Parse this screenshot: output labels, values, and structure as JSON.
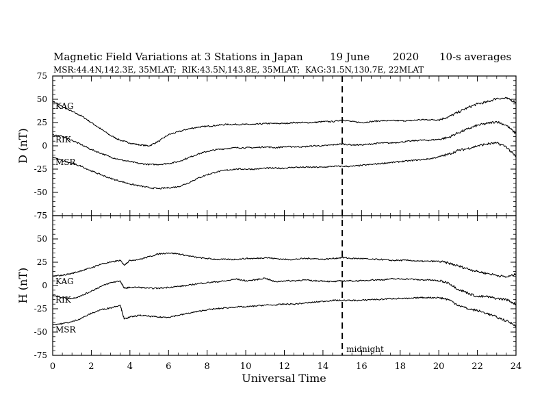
{
  "title": "Magnetic Field Variations at 3 Stations in Japan",
  "date": "19 June",
  "year": "2020",
  "averaging": "10-s averages",
  "subtitle": "MSR:44.4N,142.3E, 35MLAT;  RIK:43.5N,143.8E, 35MLAT;  KAG:31.5N,130.7E, 22MLAT",
  "chart_data": [
    {
      "type": "line",
      "ylabel": "D (nT)",
      "xlabel": "",
      "xlim": [
        0,
        24
      ],
      "ylim": [
        -75,
        75
      ],
      "yticks": [
        75,
        50,
        25,
        0,
        -25,
        -50,
        -75
      ],
      "grid": false,
      "series": [
        {
          "name": "KAG",
          "x": [
            0,
            0.5,
            1,
            1.5,
            2,
            2.5,
            3,
            3.5,
            4,
            4.5,
            5,
            5.5,
            6,
            6.5,
            7,
            7.5,
            8,
            8.5,
            9,
            9.5,
            10,
            10.5,
            11,
            11.5,
            12,
            12.5,
            13,
            13.5,
            14,
            14.5,
            15,
            15.5,
            16,
            16.5,
            17,
            17.5,
            18,
            18.5,
            19,
            19.5,
            20,
            20.5,
            21,
            21.5,
            22,
            22.5,
            23,
            23.5,
            24
          ],
          "y": [
            48,
            42,
            37,
            32,
            25,
            18,
            11,
            6,
            3,
            1,
            0,
            5,
            12,
            15,
            18,
            20,
            21,
            22,
            23,
            23,
            23,
            23,
            24,
            24,
            24,
            25,
            25,
            25,
            26,
            26,
            28,
            26,
            25,
            26,
            27,
            27,
            27,
            27,
            28,
            28,
            28,
            31,
            36,
            41,
            45,
            47,
            51,
            51,
            47
          ]
        },
        {
          "name": "RIK",
          "x": [
            0,
            0.5,
            1,
            1.5,
            2,
            2.5,
            3,
            3.5,
            4,
            4.5,
            5,
            5.5,
            6,
            6.5,
            7,
            7.5,
            8,
            8.5,
            9,
            9.5,
            10,
            10.5,
            11,
            11.5,
            12,
            12.5,
            13,
            13.5,
            14,
            14.5,
            15,
            15.5,
            16,
            16.5,
            17,
            17.5,
            18,
            18.5,
            19,
            19.5,
            20,
            20.5,
            21,
            21.5,
            22,
            22.5,
            23,
            23.5,
            24
          ],
          "y": [
            12,
            10,
            6,
            1,
            -4,
            -8,
            -12,
            -15,
            -17,
            -19,
            -20,
            -20,
            -19,
            -17,
            -13,
            -9,
            -6,
            -4,
            -3,
            -2,
            -2,
            -2,
            -1,
            -2,
            -1,
            -1,
            -1,
            0,
            0,
            1,
            2,
            1,
            1,
            2,
            3,
            3,
            4,
            5,
            6,
            6,
            7,
            9,
            14,
            18,
            22,
            24,
            26,
            22,
            13
          ]
        },
        {
          "name": "MSR",
          "x": [
            0,
            0.5,
            1,
            1.5,
            2,
            2.5,
            3,
            3.5,
            4,
            4.5,
            5,
            5.5,
            6,
            6.5,
            7,
            7.5,
            8,
            8.5,
            9,
            9.5,
            10,
            10.5,
            11,
            11.5,
            12,
            12.5,
            13,
            13.5,
            14,
            14.5,
            15,
            15.5,
            16,
            16.5,
            17,
            17.5,
            18,
            18.5,
            19,
            19.5,
            20,
            20.5,
            21,
            21.5,
            22,
            22.5,
            23,
            23.5,
            24
          ],
          "y": [
            -12,
            -16,
            -19,
            -22,
            -27,
            -31,
            -35,
            -38,
            -41,
            -43,
            -45,
            -46,
            -45,
            -44,
            -40,
            -35,
            -31,
            -28,
            -26,
            -25,
            -25,
            -25,
            -24,
            -24,
            -24,
            -23,
            -23,
            -23,
            -23,
            -22,
            -22,
            -22,
            -21,
            -20,
            -19,
            -18,
            -17,
            -16,
            -15,
            -14,
            -12,
            -9,
            -5,
            -3,
            0,
            2,
            3,
            -1,
            -12
          ]
        }
      ]
    },
    {
      "type": "line",
      "ylabel": "H (nT)",
      "xlabel": "Universal Time",
      "xlim": [
        0,
        24
      ],
      "ylim": [
        -75,
        75
      ],
      "yticks": [
        75,
        50,
        25,
        0,
        -25,
        -50,
        -75
      ],
      "xticks": [
        0,
        2,
        4,
        6,
        8,
        10,
        12,
        14,
        16,
        18,
        20,
        22,
        24
      ],
      "grid": false,
      "series": [
        {
          "name": "KAG",
          "x": [
            0,
            0.5,
            1,
            1.5,
            2,
            2.5,
            3,
            3.5,
            3.7,
            4,
            4.5,
            5,
            5.5,
            6,
            6.5,
            7,
            7.5,
            8,
            8.5,
            9,
            9.5,
            10,
            10.5,
            11,
            11.5,
            12,
            12.5,
            13,
            13.5,
            14,
            14.5,
            15,
            15.5,
            16,
            16.5,
            17,
            17.5,
            18,
            18.5,
            19,
            19.5,
            20,
            20.5,
            21,
            21.5,
            22,
            22.5,
            23,
            23.5,
            24
          ],
          "y": [
            10,
            11,
            13,
            16,
            19,
            23,
            25,
            27,
            22,
            27,
            28,
            31,
            34,
            35,
            34,
            32,
            30,
            29,
            28,
            28,
            28,
            29,
            29,
            30,
            29,
            28,
            28,
            29,
            29,
            28,
            29,
            30,
            29,
            29,
            28,
            28,
            27,
            27,
            27,
            26,
            26,
            26,
            24,
            21,
            18,
            15,
            13,
            11,
            9,
            12
          ]
        },
        {
          "name": "RIK",
          "x": [
            0,
            0.5,
            1,
            1.5,
            2,
            2.5,
            3,
            3.5,
            3.7,
            4,
            4.5,
            5,
            5.5,
            6,
            6.5,
            7,
            7.5,
            8,
            8.5,
            9,
            9.5,
            10,
            10.5,
            11,
            11.5,
            12,
            12.5,
            13,
            13.5,
            14,
            14.5,
            15,
            15.5,
            16,
            16.5,
            17,
            17.5,
            18,
            18.5,
            19,
            19.5,
            20,
            20.5,
            21,
            21.5,
            22,
            22.5,
            23,
            23.5,
            24
          ],
          "y": [
            -10,
            -13,
            -14,
            -11,
            -6,
            -1,
            3,
            5,
            -3,
            -2,
            -2,
            -3,
            -3,
            -2,
            -1,
            0,
            2,
            3,
            4,
            5,
            7,
            5,
            6,
            8,
            4,
            5,
            5,
            6,
            5,
            5,
            4,
            5,
            5,
            5,
            6,
            6,
            7,
            7,
            7,
            6,
            6,
            5,
            3,
            -4,
            -8,
            -12,
            -12,
            -14,
            -15,
            -20
          ]
        },
        {
          "name": "MSR",
          "x": [
            0,
            0.5,
            1,
            1.5,
            2,
            2.5,
            3,
            3.5,
            3.7,
            4,
            4.5,
            5,
            5.5,
            6,
            6.5,
            7,
            7.5,
            8,
            8.5,
            9,
            9.5,
            10,
            10.5,
            11,
            11.5,
            12,
            12.5,
            13,
            13.5,
            14,
            14.5,
            15,
            15.5,
            16,
            16.5,
            17,
            17.5,
            18,
            18.5,
            19,
            19.5,
            20,
            20.5,
            21,
            21.5,
            22,
            22.5,
            23,
            23.5,
            24
          ],
          "y": [
            -42,
            -41,
            -39,
            -35,
            -30,
            -26,
            -24,
            -21,
            -36,
            -34,
            -32,
            -33,
            -34,
            -34,
            -32,
            -30,
            -28,
            -26,
            -25,
            -24,
            -23,
            -23,
            -22,
            -21,
            -21,
            -20,
            -20,
            -19,
            -18,
            -17,
            -16,
            -16,
            -16,
            -16,
            -15,
            -15,
            -14,
            -14,
            -14,
            -13,
            -13,
            -13,
            -15,
            -21,
            -25,
            -27,
            -30,
            -34,
            -38,
            -43
          ]
        }
      ]
    }
  ],
  "annotation": {
    "midnight_label": "midnight",
    "midnight_ut": 15
  }
}
